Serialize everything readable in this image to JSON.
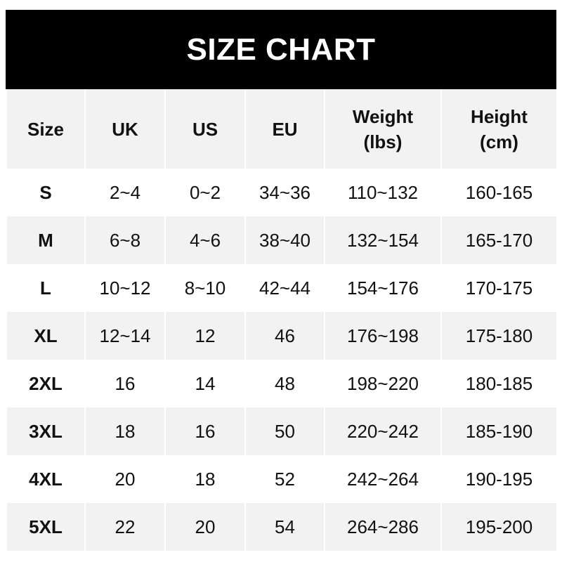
{
  "title": "SIZE CHART",
  "columns": [
    "Size",
    "UK",
    "US",
    "EU",
    "Weight\n(lbs)",
    "Height\n(cm)"
  ],
  "column_lines": [
    [
      "Size"
    ],
    [
      "UK"
    ],
    [
      "US"
    ],
    [
      "EU"
    ],
    [
      "Weight",
      "(lbs)"
    ],
    [
      "Height",
      "(cm)"
    ]
  ],
  "rows": [
    [
      "S",
      "2~4",
      "0~2",
      "34~36",
      "110~132",
      "160-165"
    ],
    [
      "M",
      "6~8",
      "4~6",
      "38~40",
      "132~154",
      "165-170"
    ],
    [
      "L",
      "10~12",
      "8~10",
      "42~44",
      "154~176",
      "170-175"
    ],
    [
      "XL",
      "12~14",
      "12",
      "46",
      "176~198",
      "175-180"
    ],
    [
      "2XL",
      "16",
      "14",
      "48",
      "198~220",
      "180-185"
    ],
    [
      "3XL",
      "18",
      "16",
      "50",
      "220~242",
      "185-190"
    ],
    [
      "4XL",
      "20",
      "18",
      "52",
      "242~264",
      "190-195"
    ],
    [
      "5XL",
      "22",
      "20",
      "54",
      "264~286",
      "195-200"
    ]
  ],
  "colors": {
    "header_bg": "#000000",
    "stripe": "#f2f2f2",
    "text": "#111111"
  }
}
